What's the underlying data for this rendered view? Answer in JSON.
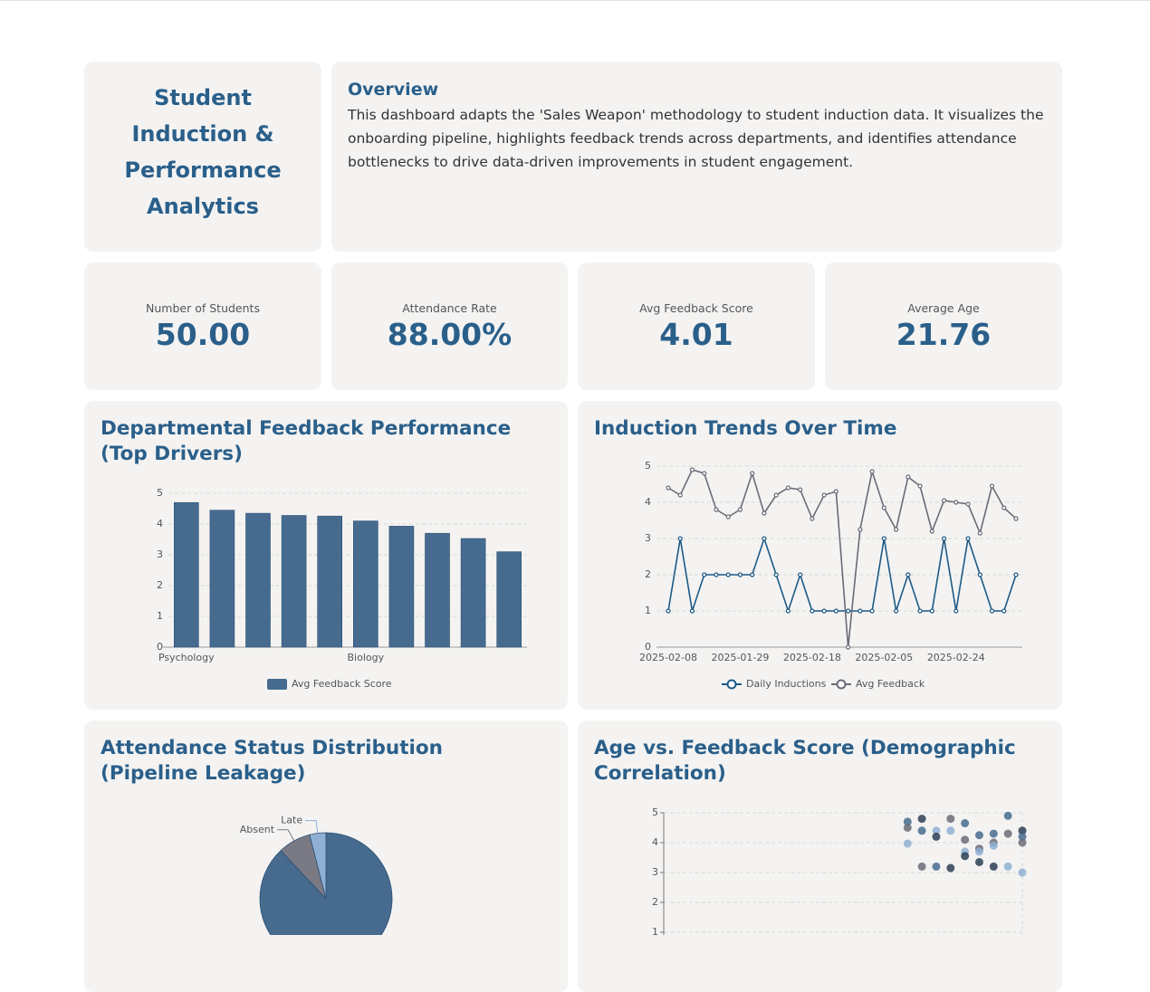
{
  "header": {
    "title": "Student Induction & Performance Analytics"
  },
  "overview": {
    "title": "Overview",
    "text": "This dashboard adapts the 'Sales Weapon' methodology to student induction data. It visualizes the onboarding pipeline, highlights feedback trends across departments, and identifies attendance bottlenecks to drive data-driven improvements in student engagement."
  },
  "kpis": [
    {
      "label": "Number of Students",
      "value": "50.00"
    },
    {
      "label": "Attendance Rate",
      "value": "88.00%"
    },
    {
      "label": "Avg Feedback Score",
      "value": "4.01"
    },
    {
      "label": "Average Age",
      "value": "21.76"
    }
  ],
  "chart_data": [
    {
      "type": "bar",
      "title": "Departmental Feedback Performance (Top Drivers)",
      "categories": [
        "Psychology",
        null,
        null,
        null,
        null,
        "Biology",
        null,
        null,
        null,
        null
      ],
      "series": [
        {
          "name": "Avg Feedback Score",
          "color": "#466b8f",
          "values": [
            4.7,
            4.45,
            4.35,
            4.28,
            4.26,
            4.1,
            3.93,
            3.7,
            3.53,
            3.1
          ]
        }
      ],
      "ylim": [
        0,
        5
      ],
      "yticks": [
        0,
        1,
        2,
        3,
        4,
        5
      ],
      "grid": true
    },
    {
      "type": "line",
      "title": "Induction Trends Over Time",
      "x": [
        "2025-02-08",
        null,
        null,
        null,
        null,
        null,
        "2025-01-29",
        null,
        null,
        null,
        null,
        null,
        "2025-02-18",
        null,
        null,
        null,
        null,
        null,
        "2025-02-05",
        null,
        null,
        null,
        null,
        null,
        "2025-02-24",
        null,
        null,
        null,
        null,
        null
      ],
      "series": [
        {
          "name": "Daily Inductions",
          "color": "#1d5a85",
          "values": [
            1,
            3,
            1,
            2,
            2,
            2,
            2,
            2,
            3,
            2,
            1,
            2,
            1,
            1,
            1,
            1,
            1,
            1,
            3,
            1,
            2,
            1,
            1,
            3,
            1,
            3,
            2,
            1,
            1,
            2
          ]
        },
        {
          "name": "Avg Feedback",
          "color": "#6b6b78",
          "values": [
            4.4,
            4.2,
            4.9,
            4.8,
            3.8,
            3.6,
            3.8,
            4.8,
            3.7,
            4.2,
            4.4,
            4.35,
            3.55,
            4.2,
            4.3,
            0,
            3.25,
            4.85,
            3.85,
            3.25,
            4.7,
            4.45,
            3.2,
            4.05,
            4.0,
            3.95,
            3.15,
            4.45,
            3.85,
            3.55
          ]
        }
      ],
      "ylim": [
        0,
        5
      ],
      "yticks": [
        0,
        1,
        2,
        3,
        4,
        5
      ],
      "grid": true
    },
    {
      "type": "pie",
      "title": "Attendance Status Distribution (Pipeline Leakage)",
      "categories": [
        null,
        "Absent",
        "Late"
      ],
      "values": [
        44,
        4,
        2
      ],
      "colors": [
        "#466b8f",
        "#7a7a85",
        "#8fb0d4"
      ]
    },
    {
      "type": "scatter",
      "title": "Age vs. Feedback Score (Demographic Correlation)",
      "series": [
        {
          "color": "#466b8f",
          "x": [
            17,
            17,
            17,
            18,
            18,
            18,
            19,
            19,
            19,
            20,
            20,
            20,
            21,
            21,
            21,
            21,
            22,
            22,
            22,
            22,
            23,
            23,
            23,
            23,
            24,
            24,
            24,
            25,
            25,
            25,
            25
          ],
          "values": [
            4.7,
            4.5,
            3.97,
            4.8,
            4.4,
            3.2,
            4.4,
            4.2,
            3.2,
            4.8,
            4.4,
            3.15,
            4.65,
            4.1,
            3.7,
            3.55,
            4.25,
            3.8,
            3.7,
            3.35,
            4.3,
            4.0,
            3.9,
            3.2,
            4.9,
            4.3,
            3.2,
            4.4,
            4.2,
            4.0,
            3.0
          ]
        }
      ],
      "colors": [
        "#466b8f",
        "#6b6b78",
        "#8fb0d4",
        "#2c3e55"
      ],
      "xlim": [
        0,
        25
      ],
      "ylim": [
        0,
        5
      ],
      "yticks": [
        1,
        2,
        3,
        4,
        5
      ],
      "grid": true
    }
  ]
}
